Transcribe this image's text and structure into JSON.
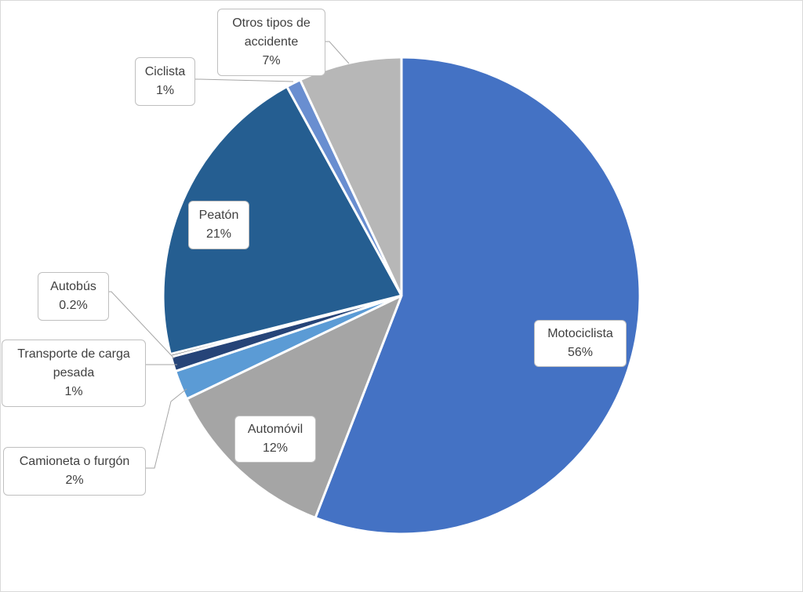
{
  "chart_data": {
    "type": "pie",
    "title": "",
    "start_angle_deg": 0,
    "direction": "clockwise",
    "slices": [
      {
        "label": "Motociclista",
        "value": 56,
        "display": "56%",
        "color": "#4472C4"
      },
      {
        "label": "Automóvil",
        "value": 12,
        "display": "12%",
        "color": "#A5A5A5"
      },
      {
        "label": "Camioneta o furgón",
        "value": 2,
        "display": "2%",
        "color": "#5B9BD5"
      },
      {
        "label": "Transporte de carga pesada",
        "value": 1,
        "display": "1%",
        "color": "#264478"
      },
      {
        "label": "Autobús",
        "value": 0.2,
        "display": "0.2%",
        "color": "#636363"
      },
      {
        "label": "Peatón",
        "value": 21,
        "display": "21%",
        "color": "#255E91"
      },
      {
        "label": "Ciclista",
        "value": 1,
        "display": "1%",
        "color": "#698ED0"
      },
      {
        "label": "Otros tipos de accidente",
        "value": 7,
        "display": "7%",
        "color": "#B7B7B7"
      }
    ]
  },
  "labels": [
    {
      "name": "Motociclista",
      "lines": [
        "Motociclista"
      ],
      "pct": "56%"
    },
    {
      "name": "Automóvil",
      "lines": [
        "Automóvil"
      ],
      "pct": "12%"
    },
    {
      "name": "Camioneta o furgón",
      "lines": [
        "Camioneta o furgón"
      ],
      "pct": "2%"
    },
    {
      "name": "Transporte de carga pesada",
      "lines": [
        "Transporte de carga",
        "pesada"
      ],
      "pct": "1%"
    },
    {
      "name": "Autobús",
      "lines": [
        "Autobús"
      ],
      "pct": "0.2%"
    },
    {
      "name": "Peatón",
      "lines": [
        "Peatón"
      ],
      "pct": "21%"
    },
    {
      "name": "Ciclista",
      "lines": [
        "Ciclista"
      ],
      "pct": "1%"
    },
    {
      "name": "Otros tipos de accidente",
      "lines": [
        "Otros tipos de",
        "accidente"
      ],
      "pct": "7%"
    }
  ]
}
